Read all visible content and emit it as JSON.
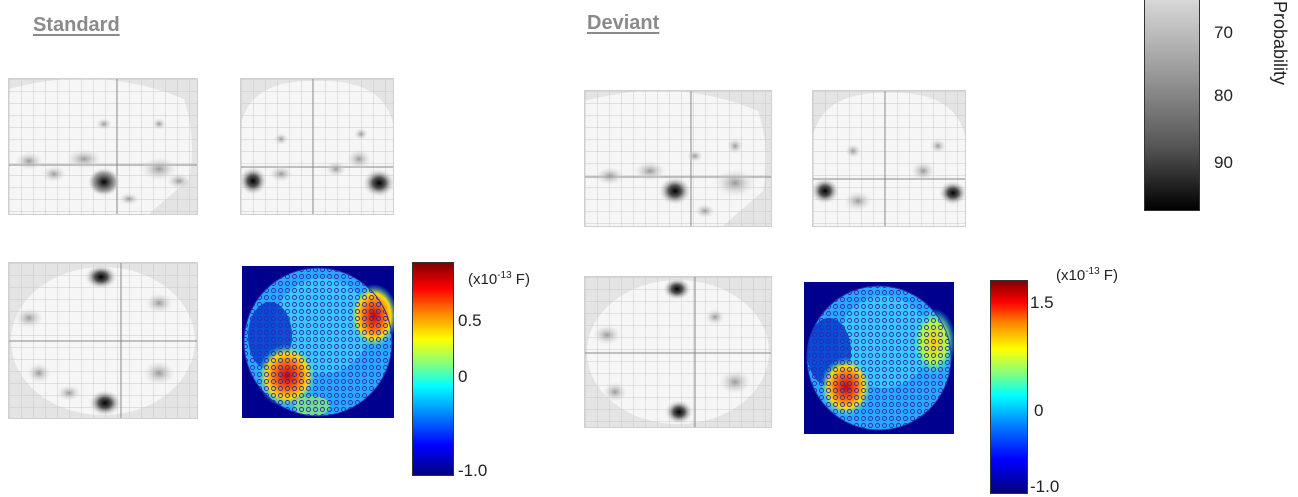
{
  "conditions": {
    "standard": {
      "heading": "Standard"
    },
    "deviant": {
      "heading": "Deviant"
    }
  },
  "standard_colorbar": {
    "unit_prefix": "(x10",
    "unit_exp": "-13",
    "unit_suffix": " F)",
    "ticks": [
      "0.5",
      "0",
      "-1.0"
    ]
  },
  "deviant_colorbar": {
    "unit_prefix": "(x10",
    "unit_exp": "-13",
    "unit_suffix": " F)",
    "ticks": [
      "1.5",
      "0",
      "-1.0"
    ]
  },
  "probability_bar": {
    "label": "n Probability",
    "ticks": [
      "70",
      "80",
      "90"
    ]
  },
  "colors": {
    "heading": "#8a8a8a",
    "glass_bg": "#e4e4e4",
    "brain": "#f6f6f6",
    "topo_bg": "#00008f"
  }
}
